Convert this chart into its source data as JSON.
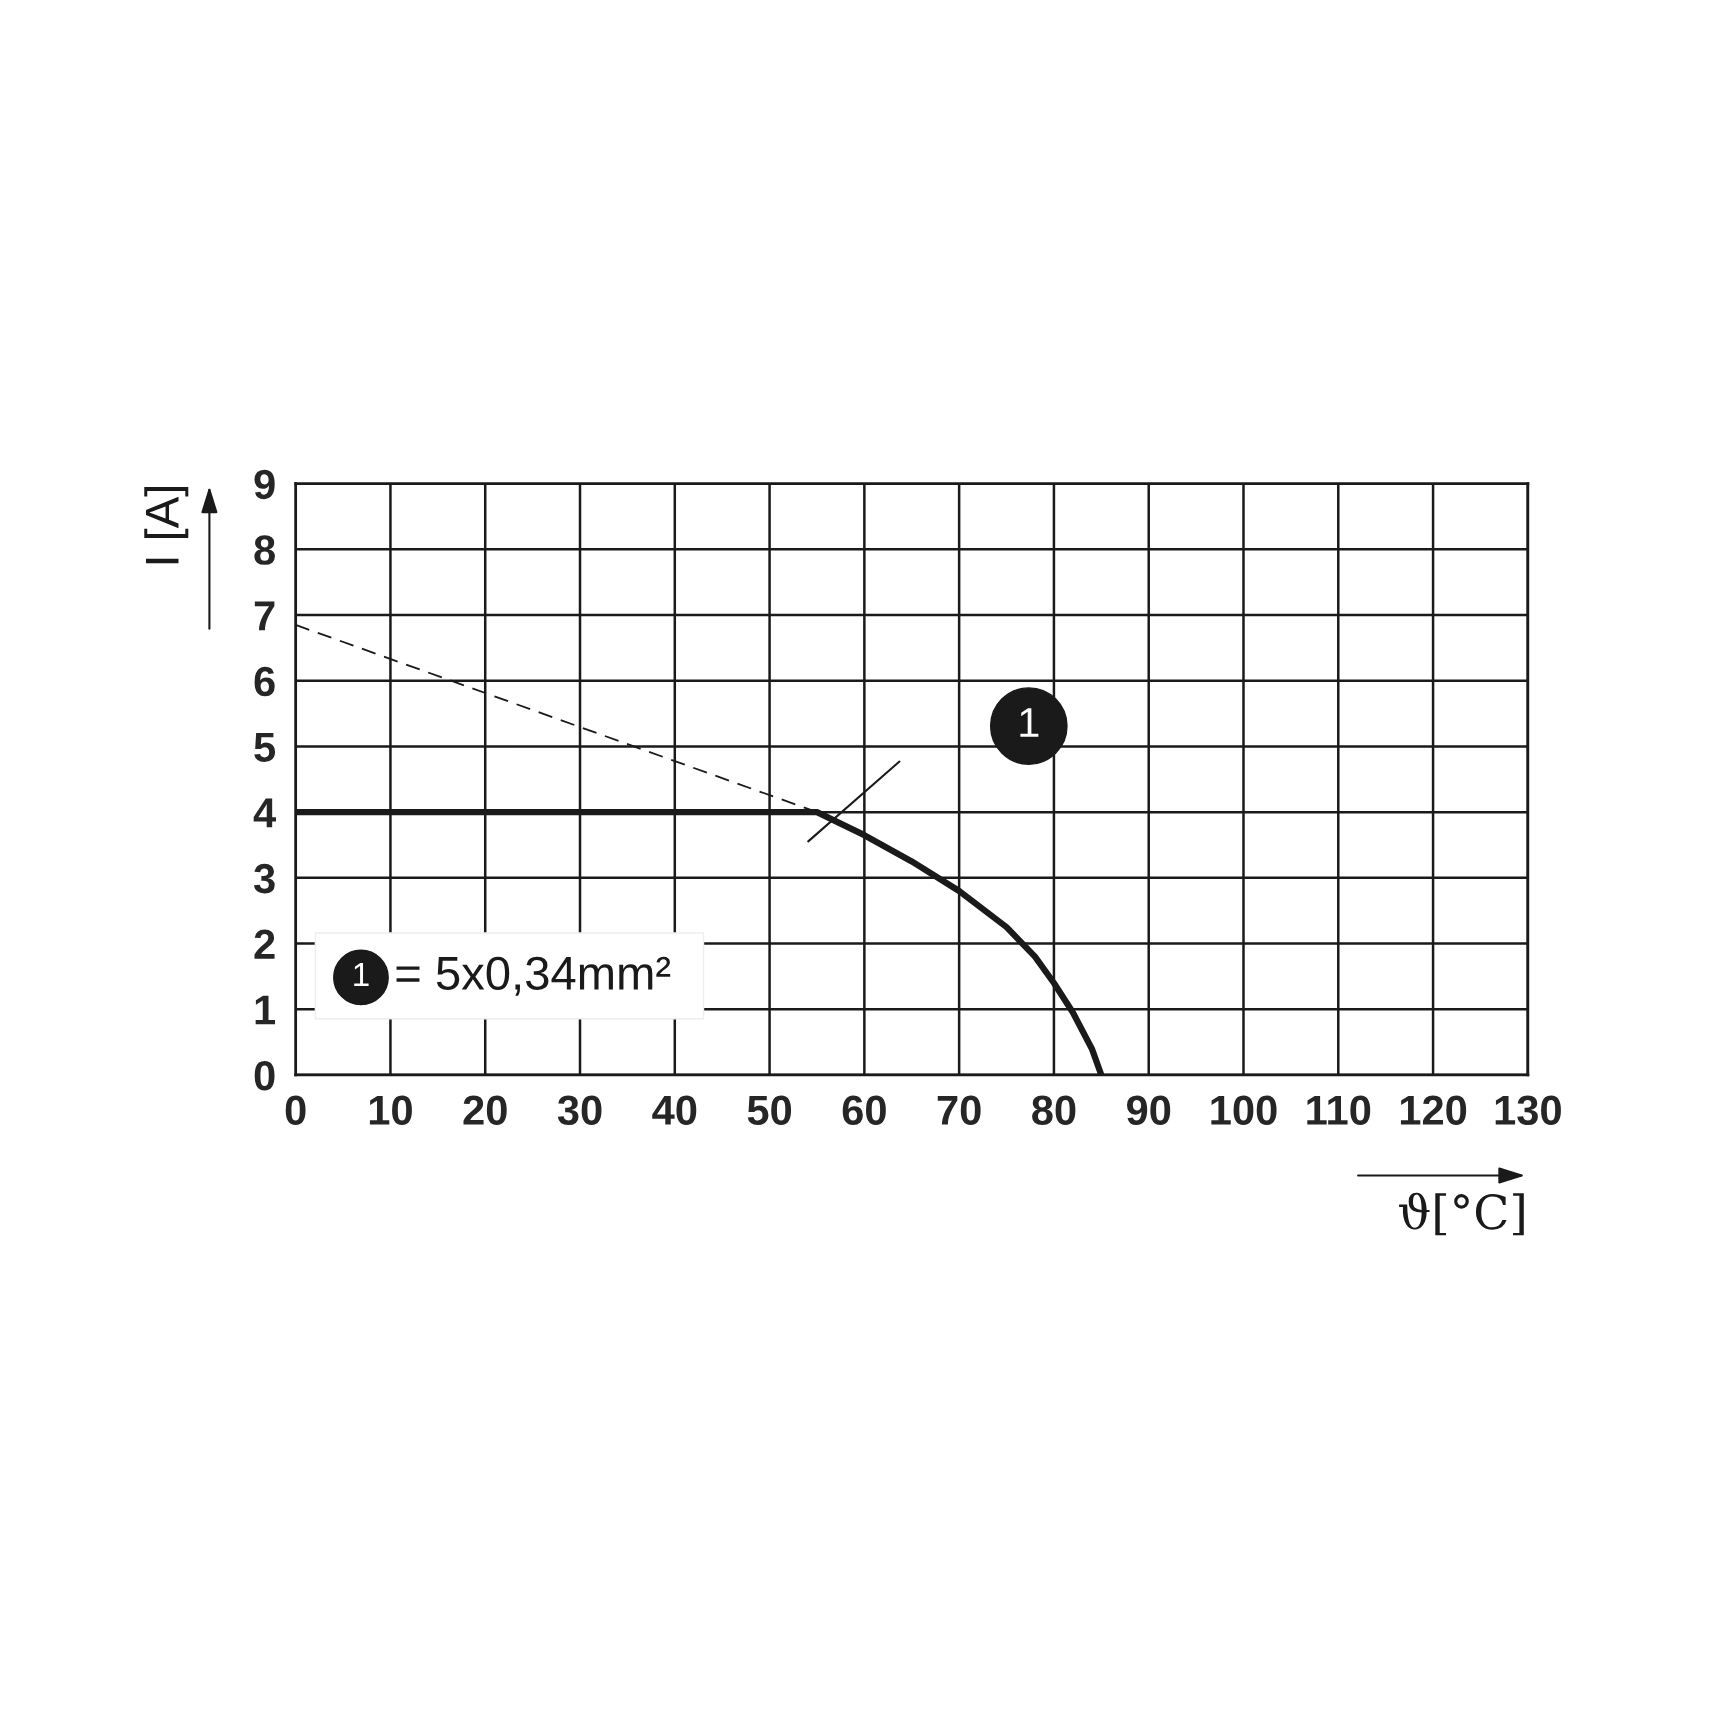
{
  "chart_data": {
    "type": "line",
    "xlabel": "ϑ[°C]",
    "ylabel": "I [A]",
    "xlim": [
      0,
      130
    ],
    "ylim": [
      0,
      9
    ],
    "xticks": [
      0,
      10,
      20,
      30,
      40,
      50,
      60,
      70,
      80,
      90,
      100,
      110,
      120,
      130
    ],
    "yticks": [
      0,
      1,
      2,
      3,
      4,
      5,
      6,
      7,
      8,
      9
    ],
    "grid": true,
    "marker": "none",
    "series": [
      {
        "color": "#1a1a1a",
        "line_style": "dashed",
        "x": [
          0,
          55
        ],
        "values": [
          6.85,
          4
        ]
      },
      {
        "color": "#1a1a1a",
        "line_style": "solid",
        "x": [
          0,
          55,
          60,
          65,
          70,
          75,
          78,
          80,
          82,
          84,
          85
        ],
        "values": [
          4,
          4,
          3.65,
          3.25,
          2.8,
          2.25,
          1.8,
          1.4,
          0.95,
          0.4,
          0
        ]
      }
    ],
    "annotations": [
      "1",
      "1",
      "= 5x0,34mm²"
    ]
  }
}
